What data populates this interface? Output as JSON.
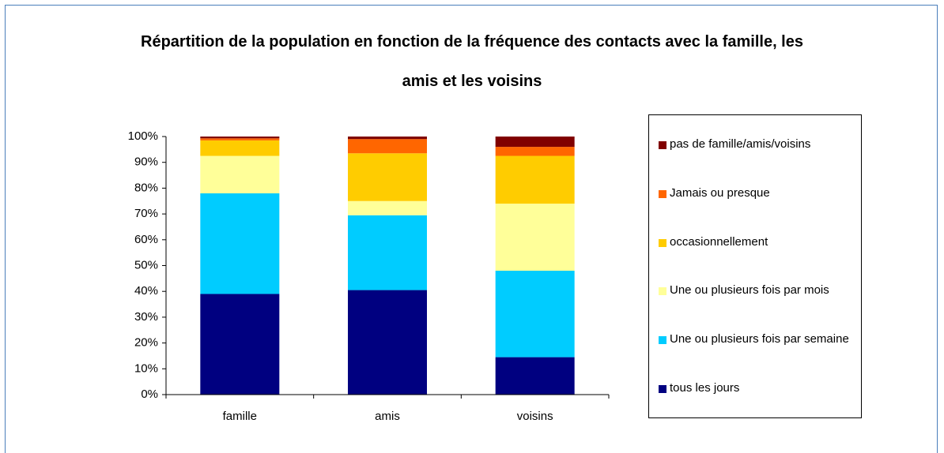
{
  "chart_data": {
    "type": "stacked_bar",
    "title": "Répartition de la population en fonction de la fréquence des contacts avec la famille, les amis et les voisins",
    "categories": [
      "famille",
      "amis",
      "voisins"
    ],
    "series": [
      {
        "name": "tous les jours",
        "color": "#000080",
        "values": [
          39,
          40.5,
          14.5
        ]
      },
      {
        "name": "Une ou plusieurs fois par semaine",
        "color": "#00ccff",
        "values": [
          39,
          29,
          33.5
        ]
      },
      {
        "name": "Une ou plusieurs fois par mois",
        "color": "#ffff99",
        "values": [
          14.5,
          5.5,
          26
        ]
      },
      {
        "name": "occasionnellement",
        "color": "#ffcc00",
        "values": [
          6,
          18.5,
          18.5
        ]
      },
      {
        "name": "Jamais ou presque",
        "color": "#ff6600",
        "values": [
          0.8,
          5.5,
          3.5
        ]
      },
      {
        "name": "pas de famille/amis/voisins",
        "color": "#800000",
        "values": [
          0.7,
          1,
          4
        ]
      }
    ],
    "ylim": [
      0,
      100
    ],
    "yticks": [
      {
        "value": 0,
        "label": "0%"
      },
      {
        "value": 10,
        "label": "10%"
      },
      {
        "value": 20,
        "label": "20%"
      },
      {
        "value": 30,
        "label": "30%"
      },
      {
        "value": 40,
        "label": "40%"
      },
      {
        "value": 50,
        "label": "50%"
      },
      {
        "value": 60,
        "label": "60%"
      },
      {
        "value": 70,
        "label": "70%"
      },
      {
        "value": 80,
        "label": "80%"
      },
      {
        "value": 90,
        "label": "90%"
      },
      {
        "value": 100,
        "label": "100%"
      }
    ],
    "legend": "right"
  }
}
